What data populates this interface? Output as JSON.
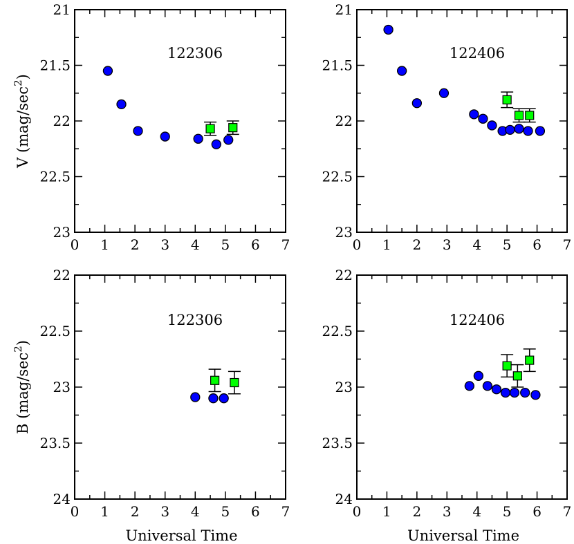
{
  "chart_data": [
    {
      "type": "scatter",
      "panel": "top-left",
      "title": "122306",
      "ylabel": "V (mag/sec",
      "ylabel_sup": "2",
      "ylabel_close": ")",
      "xlabel": "",
      "xlim": [
        0,
        7
      ],
      "ylim": [
        21,
        23
      ],
      "y_inverted": true,
      "xticks": [
        0,
        1,
        2,
        3,
        4,
        5,
        6,
        7
      ],
      "xtick_labels": [
        "0",
        "1",
        "2",
        "3",
        "4",
        "5",
        "6",
        "7"
      ],
      "yticks": [
        21,
        21.5,
        22,
        22.5,
        23
      ],
      "ytick_labels": [
        "21",
        "21.5",
        "22",
        "22.5",
        "23"
      ],
      "series": [
        {
          "name": "blue-circles",
          "marker": "circle",
          "color": "#0000ff",
          "x": [
            1.1,
            1.55,
            2.1,
            3.0,
            4.1,
            4.7,
            5.1
          ],
          "y": [
            21.55,
            21.85,
            22.09,
            22.14,
            22.16,
            22.21,
            22.17
          ]
        },
        {
          "name": "green-squares",
          "marker": "square",
          "color": "#00ff00",
          "x": [
            4.5,
            5.25
          ],
          "y": [
            22.07,
            22.06
          ],
          "err": [
            0.06,
            0.06
          ]
        }
      ]
    },
    {
      "type": "scatter",
      "panel": "top-right",
      "title": "122406",
      "ylabel": "",
      "xlabel": "",
      "xlim": [
        0,
        7
      ],
      "ylim": [
        21,
        23
      ],
      "y_inverted": true,
      "xticks": [
        0,
        1,
        2,
        3,
        4,
        5,
        6,
        7
      ],
      "xtick_labels": [
        "0",
        "1",
        "2",
        "3",
        "4",
        "5",
        "6",
        "7"
      ],
      "yticks": [
        21,
        21.5,
        22,
        22.5,
        23
      ],
      "ytick_labels": [
        "21",
        "21.5",
        "22",
        "22.5",
        "23"
      ],
      "series": [
        {
          "name": "blue-circles",
          "marker": "circle",
          "color": "#0000ff",
          "x": [
            1.05,
            1.5,
            2.0,
            2.9,
            3.9,
            4.2,
            4.5,
            4.85,
            5.1,
            5.4,
            5.7,
            6.1
          ],
          "y": [
            21.18,
            21.55,
            21.84,
            21.75,
            21.94,
            21.98,
            22.04,
            22.09,
            22.08,
            22.07,
            22.09,
            22.09
          ]
        },
        {
          "name": "green-squares",
          "marker": "square",
          "color": "#00ff00",
          "x": [
            5.0,
            5.4,
            5.75
          ],
          "y": [
            21.81,
            21.95,
            21.95
          ],
          "err": [
            0.07,
            0.06,
            0.06
          ]
        }
      ]
    },
    {
      "type": "scatter",
      "panel": "bottom-left",
      "title": "122306",
      "ylabel": "B (mag/sec",
      "ylabel_sup": "2",
      "ylabel_close": ")",
      "xlabel": "Universal Time",
      "xlim": [
        0,
        7
      ],
      "ylim": [
        22,
        24
      ],
      "y_inverted": true,
      "xticks": [
        0,
        1,
        2,
        3,
        4,
        5,
        6,
        7
      ],
      "xtick_labels": [
        "0",
        "1",
        "2",
        "3",
        "4",
        "5",
        "6",
        "7"
      ],
      "yticks": [
        22,
        22.5,
        23,
        23.5,
        24
      ],
      "ytick_labels": [
        "22",
        "22.5",
        "23",
        "23.5",
        "24"
      ],
      "series": [
        {
          "name": "blue-circles",
          "marker": "circle",
          "color": "#0000ff",
          "x": [
            4.0,
            4.6,
            4.95
          ],
          "y": [
            23.09,
            23.1,
            23.1
          ]
        },
        {
          "name": "green-squares",
          "marker": "square",
          "color": "#00ff00",
          "x": [
            4.65,
            5.3
          ],
          "y": [
            22.94,
            22.96
          ],
          "err": [
            0.1,
            0.1
          ]
        }
      ]
    },
    {
      "type": "scatter",
      "panel": "bottom-right",
      "title": "122406",
      "ylabel": "",
      "xlabel": "Universal Time",
      "xlim": [
        0,
        7
      ],
      "ylim": [
        22,
        24
      ],
      "y_inverted": true,
      "xticks": [
        0,
        1,
        2,
        3,
        4,
        5,
        6,
        7
      ],
      "xtick_labels": [
        "0",
        "1",
        "2",
        "3",
        "4",
        "5",
        "6",
        "7"
      ],
      "yticks": [
        22,
        22.5,
        23,
        23.5,
        24
      ],
      "ytick_labels": [
        "22",
        "22.5",
        "23",
        "23.5",
        "24"
      ],
      "series": [
        {
          "name": "blue-circles",
          "marker": "circle",
          "color": "#0000ff",
          "x": [
            3.75,
            4.05,
            4.35,
            4.65,
            4.95,
            5.25,
            5.6,
            5.95
          ],
          "y": [
            22.99,
            22.9,
            22.99,
            23.02,
            23.05,
            23.05,
            23.05,
            23.07
          ]
        },
        {
          "name": "green-squares",
          "marker": "square",
          "color": "#00ff00",
          "x": [
            5.0,
            5.35,
            5.75
          ],
          "y": [
            22.81,
            22.9,
            22.76
          ],
          "err": [
            0.1,
            0.1,
            0.1
          ]
        }
      ]
    }
  ]
}
